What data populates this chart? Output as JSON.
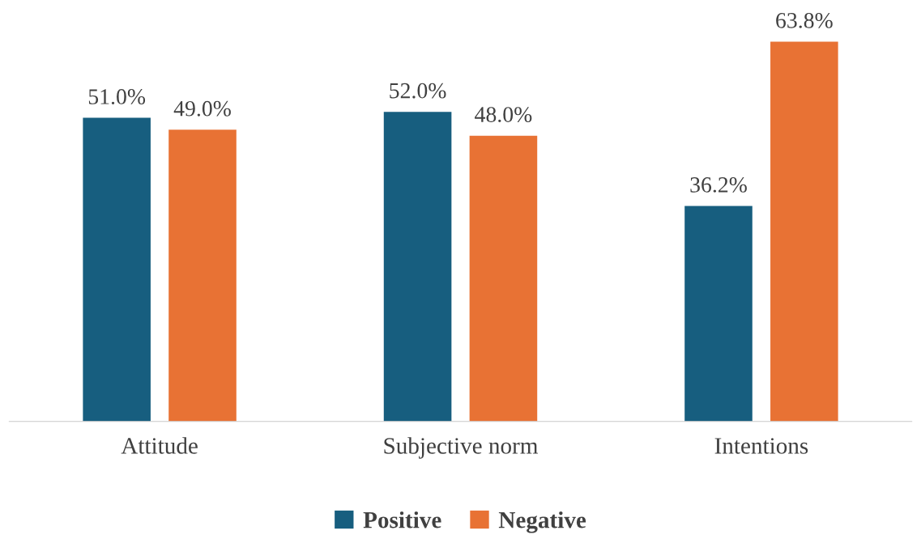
{
  "chart_data": {
    "type": "bar",
    "categories": [
      "Attitude",
      "Subjective norm",
      "Intentions"
    ],
    "series": [
      {
        "name": "Positive",
        "color": "#175e7f",
        "values": [
          51.0,
          52.0,
          36.2
        ],
        "value_labels": [
          "51.0%",
          "52.0%",
          "36.2%"
        ]
      },
      {
        "name": "Negative",
        "color": "#e87234",
        "values": [
          49.0,
          48.0,
          63.8
        ],
        "value_labels": [
          "49.0%",
          "48.0%",
          "63.8%"
        ]
      }
    ],
    "legend": "bottom",
    "grid": false,
    "tick_labels": "x"
  }
}
